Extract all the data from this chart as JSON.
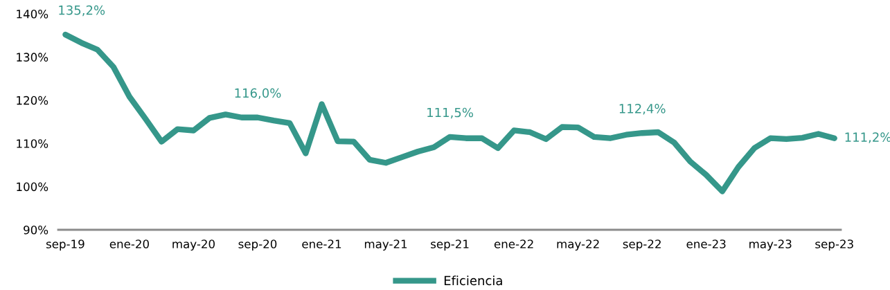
{
  "chart_data": {
    "type": "line",
    "categories": [
      "sep-19",
      null,
      null,
      null,
      "ene-20",
      null,
      null,
      null,
      "may-20",
      null,
      null,
      null,
      "sep-20",
      null,
      null,
      null,
      "ene-21",
      null,
      null,
      null,
      "may-21",
      null,
      null,
      null,
      "sep-21",
      null,
      null,
      null,
      "ene-22",
      null,
      null,
      null,
      "may-22",
      null,
      null,
      null,
      "sep-22",
      null,
      null,
      null,
      "ene-23",
      null,
      null,
      null,
      "may-23",
      null,
      null,
      null,
      "sep-23"
    ],
    "series": [
      {
        "name": "Eficiencia",
        "color": "#35978a",
        "values": [
          135.2,
          133.3,
          131.7,
          127.7,
          120.8,
          115.7,
          110.4,
          113.3,
          113.0,
          115.9,
          116.7,
          116.0,
          116.0,
          115.3,
          114.7,
          107.7,
          119.1,
          110.5,
          110.4,
          106.2,
          105.5,
          106.8,
          108.1,
          109.1,
          111.5,
          111.2,
          111.2,
          108.9,
          113.0,
          112.6,
          111.0,
          113.8,
          113.7,
          111.5,
          111.2,
          112.0,
          112.4,
          112.6,
          110.2,
          105.8,
          102.7,
          98.9,
          104.5,
          108.9,
          111.2,
          111.0,
          111.3,
          112.2,
          111.2
        ],
        "value_labels": [
          "135,2%",
          null,
          null,
          null,
          null,
          null,
          null,
          null,
          null,
          null,
          null,
          null,
          "116,0%",
          null,
          null,
          null,
          null,
          null,
          null,
          null,
          null,
          null,
          null,
          null,
          "111,5%",
          null,
          null,
          null,
          null,
          null,
          null,
          null,
          null,
          null,
          null,
          null,
          "112,4%",
          null,
          null,
          null,
          null,
          null,
          null,
          null,
          null,
          null,
          null,
          null,
          "111,2%"
        ]
      }
    ],
    "ylim": [
      90,
      140
    ],
    "yticks": [
      {
        "value": 90,
        "label": "90%"
      },
      {
        "value": 100,
        "label": "100%"
      },
      {
        "value": 110,
        "label": "110%"
      },
      {
        "value": 120,
        "label": "120%"
      },
      {
        "value": 130,
        "label": "130%"
      },
      {
        "value": 140,
        "label": "140%"
      }
    ],
    "grid": false,
    "legend": "bottom",
    "marker": "none",
    "line_style": "solid"
  }
}
